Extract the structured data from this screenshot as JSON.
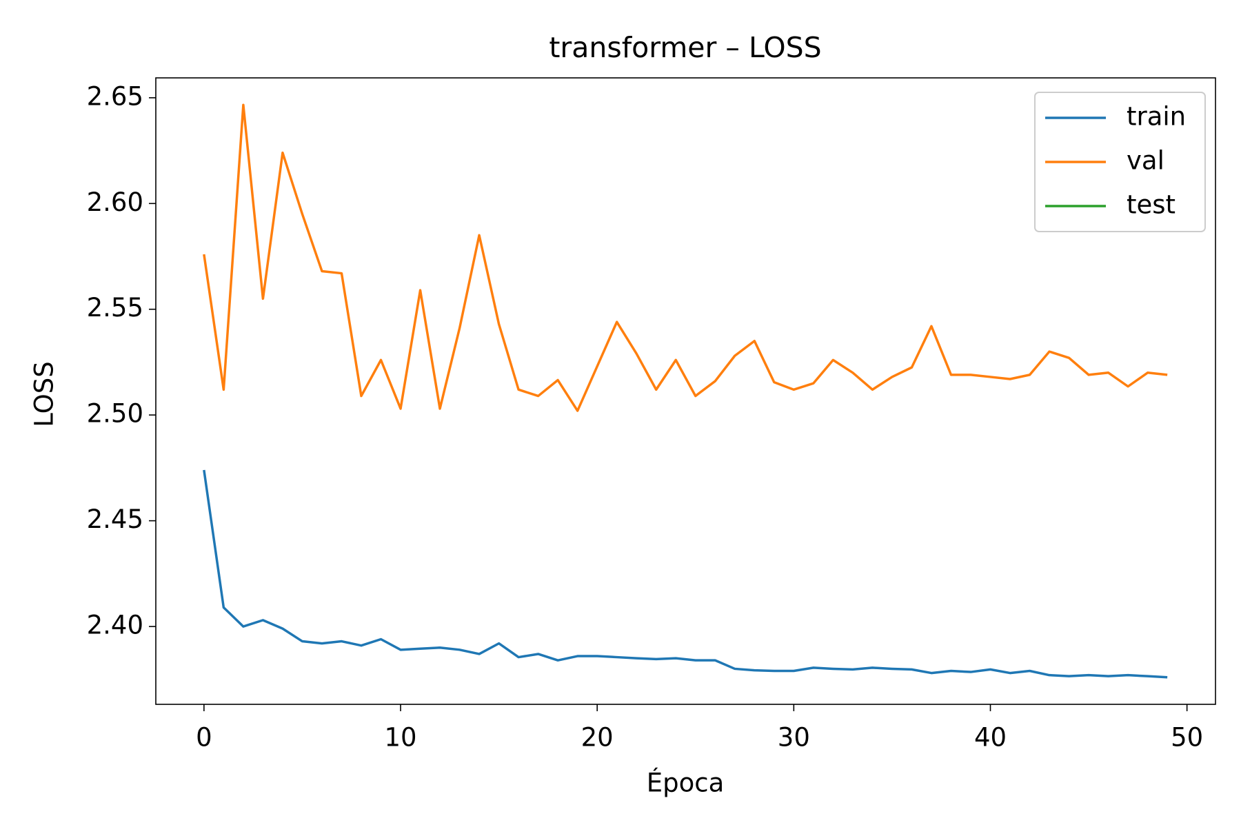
{
  "chart_data": {
    "type": "line",
    "title": "transformer – LOSS",
    "xlabel": "Época",
    "ylabel": "LOSS",
    "x": [
      0,
      1,
      2,
      3,
      4,
      5,
      6,
      7,
      8,
      9,
      10,
      11,
      12,
      13,
      14,
      15,
      16,
      17,
      18,
      19,
      20,
      21,
      22,
      23,
      24,
      25,
      26,
      27,
      28,
      29,
      30,
      31,
      32,
      33,
      34,
      35,
      36,
      37,
      38,
      39,
      40,
      41,
      42,
      43,
      44,
      45,
      46,
      47,
      48,
      49
    ],
    "series": [
      {
        "name": "train",
        "color": "#1f77b4",
        "values": [
          2.474,
          2.409,
          2.4,
          2.403,
          2.399,
          2.393,
          2.392,
          2.393,
          2.391,
          2.394,
          2.389,
          2.3895,
          2.39,
          2.389,
          2.387,
          2.392,
          2.3855,
          2.387,
          2.384,
          2.386,
          2.386,
          2.3855,
          2.385,
          2.3846,
          2.385,
          2.384,
          2.384,
          2.38,
          2.3793,
          2.379,
          2.379,
          2.3805,
          2.38,
          2.3797,
          2.3805,
          2.38,
          2.3797,
          2.378,
          2.379,
          2.3785,
          2.3797,
          2.378,
          2.379,
          2.377,
          2.3765,
          2.377,
          2.3765,
          2.377,
          2.3765,
          2.376
        ]
      },
      {
        "name": "val",
        "color": "#ff7f0e",
        "values": [
          2.576,
          2.512,
          2.6466,
          2.555,
          2.624,
          2.595,
          2.568,
          2.567,
          2.509,
          2.526,
          2.503,
          2.559,
          2.503,
          2.541,
          2.585,
          2.543,
          2.512,
          2.509,
          2.5165,
          2.502,
          2.523,
          2.544,
          2.529,
          2.512,
          2.526,
          2.509,
          2.516,
          2.528,
          2.535,
          2.5155,
          2.512,
          2.515,
          2.526,
          2.52,
          2.512,
          2.518,
          2.5225,
          2.542,
          2.519,
          2.519,
          2.518,
          2.517,
          2.519,
          2.53,
          2.527,
          2.519,
          2.52,
          2.5135,
          2.52,
          2.519
        ]
      },
      {
        "name": "test",
        "color": "#2ca02c",
        "values": [
          null,
          null,
          null,
          null,
          null,
          null,
          null,
          null,
          null,
          null,
          null,
          null,
          null,
          null,
          null,
          null,
          null,
          null,
          null,
          null,
          null,
          null,
          null,
          null,
          null,
          null,
          null,
          null,
          null,
          null,
          null,
          null,
          null,
          null,
          null,
          null,
          null,
          null,
          null,
          null,
          null,
          null,
          null,
          null,
          null,
          null,
          null,
          null,
          null,
          null
        ]
      }
    ],
    "xlim": [
      -2.45,
      51.45
    ],
    "xticks": [
      0,
      10,
      20,
      30,
      40,
      50
    ],
    "ylim": [
      2.3632,
      2.6594
    ],
    "yticks": [
      {
        "value": 2.4,
        "label": "2.40"
      },
      2.45,
      {
        "value": 2.5,
        "label": "2.50"
      },
      2.55,
      {
        "value": 2.6,
        "label": "2.60"
      },
      2.65
    ],
    "grid": false,
    "legend": "upper right"
  }
}
